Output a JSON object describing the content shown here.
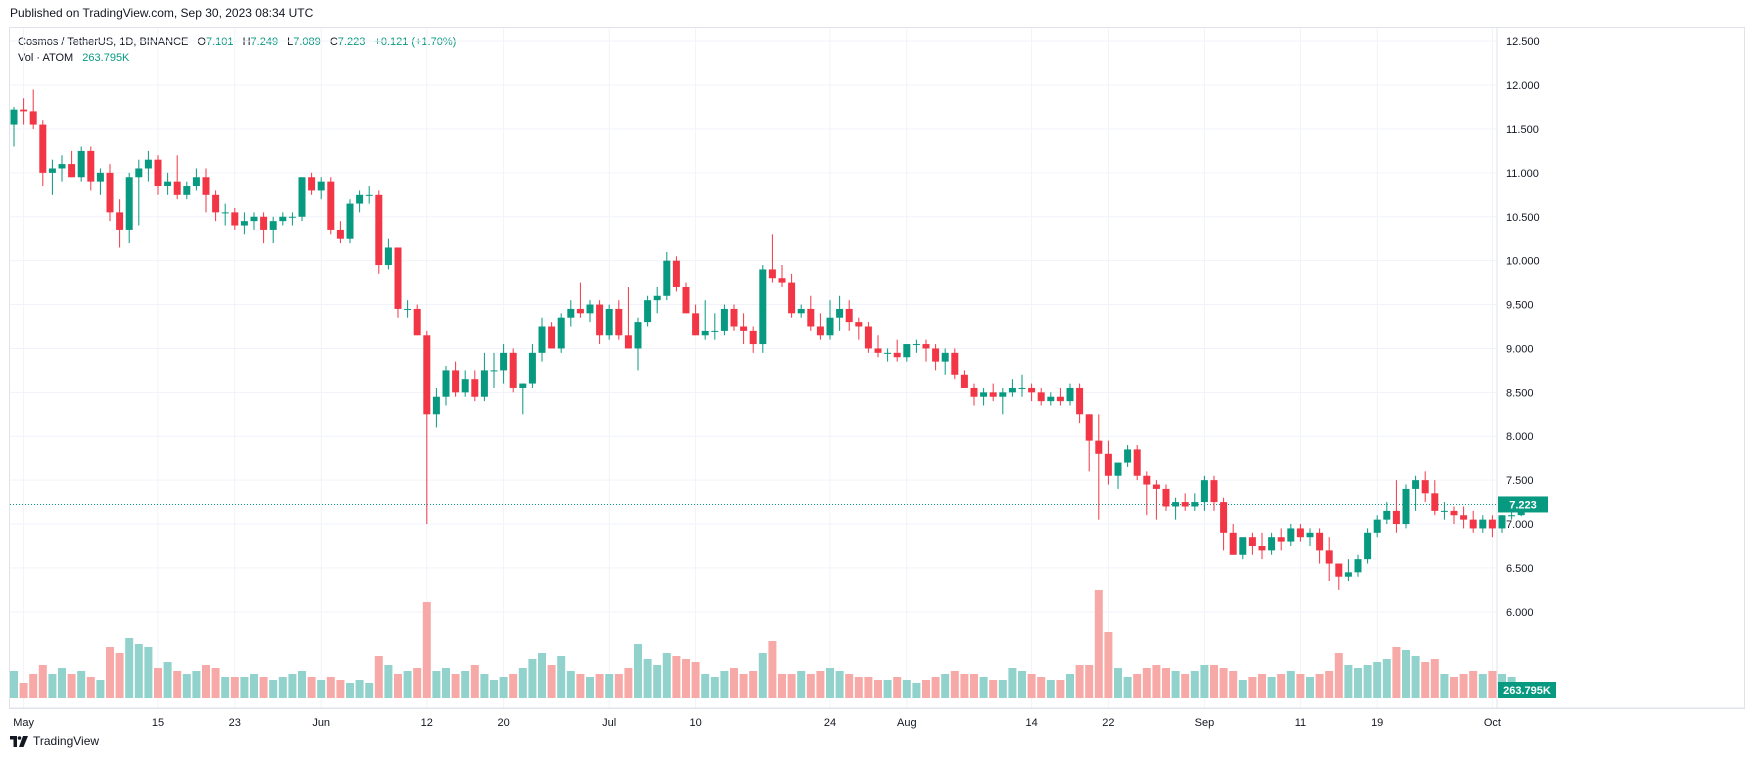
{
  "header": {
    "published": "Published on TradingView.com, Sep 30, 2023 08:34 UTC"
  },
  "legend": {
    "symbol": "Cosmos / TetherUS, 1D, BINANCE",
    "open_label": "O",
    "open": "7.101",
    "high_label": "H",
    "high": "7.249",
    "low_label": "L",
    "low": "7.089",
    "close_label": "C",
    "close": "7.223",
    "change": "+0.121 (+1.70%)",
    "vol_label": "Vol · ATOM",
    "vol": "263.795K"
  },
  "footer": {
    "brand": "TradingView"
  },
  "colors": {
    "up": "#089981",
    "down": "#f23645",
    "up_vol": "#92d2cc",
    "down_vol": "#f7a9a7",
    "grid": "#f0f3fa",
    "axis_text": "#131722"
  },
  "chart_data": {
    "type": "candlestick",
    "y_ticks": [
      "12.500",
      "12.000",
      "11.500",
      "11.000",
      "10.500",
      "10.000",
      "9.500",
      "9.000",
      "8.500",
      "8.000",
      "7.500",
      "7.000",
      "6.500",
      "6.000"
    ],
    "ylim": [
      5.85,
      12.65
    ],
    "x_labels": [
      {
        "label": "May",
        "date": "2023-05-01"
      },
      {
        "label": "15",
        "date": "2023-05-15"
      },
      {
        "label": "23",
        "date": "2023-05-23"
      },
      {
        "label": "Jun",
        "date": "2023-06-01"
      },
      {
        "label": "12",
        "date": "2023-06-12"
      },
      {
        "label": "20",
        "date": "2023-06-20"
      },
      {
        "label": "Jul",
        "date": "2023-07-01"
      },
      {
        "label": "10",
        "date": "2023-07-10"
      },
      {
        "label": "24",
        "date": "2023-07-24"
      },
      {
        "label": "Aug",
        "date": "2023-08-01"
      },
      {
        "label": "14",
        "date": "2023-08-14"
      },
      {
        "label": "22",
        "date": "2023-08-22"
      },
      {
        "label": "Sep",
        "date": "2023-09-01"
      },
      {
        "label": "11",
        "date": "2023-09-11"
      },
      {
        "label": "19",
        "date": "2023-09-19"
      },
      {
        "label": "Oct",
        "date": "2023-10-01"
      }
    ],
    "last_price_label": "7.223",
    "last_volume_label": "263.795K",
    "start_date": "2023-04-30",
    "candles": [
      [
        11.55,
        11.75,
        11.3,
        11.72,
        0.45
      ],
      [
        11.72,
        11.85,
        11.55,
        11.7,
        0.25
      ],
      [
        11.7,
        11.95,
        11.5,
        11.55,
        0.4
      ],
      [
        11.55,
        11.6,
        10.85,
        11.0,
        0.55
      ],
      [
        11.0,
        11.15,
        10.75,
        11.05,
        0.4
      ],
      [
        11.05,
        11.2,
        10.9,
        11.1,
        0.5
      ],
      [
        11.1,
        11.25,
        10.95,
        10.95,
        0.4
      ],
      [
        10.95,
        11.3,
        10.9,
        11.25,
        0.45
      ],
      [
        11.25,
        11.3,
        10.8,
        10.9,
        0.35
      ],
      [
        10.9,
        11.05,
        10.75,
        11.0,
        0.3
      ],
      [
        11.0,
        11.1,
        10.45,
        10.55,
        0.85
      ],
      [
        10.55,
        10.7,
        10.15,
        10.35,
        0.75
      ],
      [
        10.35,
        11.0,
        10.2,
        10.95,
        1.0
      ],
      [
        10.95,
        11.15,
        10.4,
        11.05,
        0.9
      ],
      [
        11.05,
        11.25,
        10.9,
        11.15,
        0.85
      ],
      [
        11.15,
        11.2,
        10.75,
        10.85,
        0.5
      ],
      [
        10.85,
        11.0,
        10.75,
        10.9,
        0.6
      ],
      [
        10.9,
        11.2,
        10.7,
        10.75,
        0.45
      ],
      [
        10.75,
        10.9,
        10.7,
        10.85,
        0.4
      ],
      [
        10.85,
        11.05,
        10.8,
        10.95,
        0.45
      ],
      [
        10.95,
        11.05,
        10.55,
        10.75,
        0.55
      ],
      [
        10.75,
        10.8,
        10.45,
        10.55,
        0.5
      ],
      [
        10.55,
        10.65,
        10.4,
        10.55,
        0.35
      ],
      [
        10.55,
        10.6,
        10.35,
        10.4,
        0.35
      ],
      [
        10.4,
        10.55,
        10.3,
        10.45,
        0.35
      ],
      [
        10.45,
        10.55,
        10.35,
        10.5,
        0.4
      ],
      [
        10.5,
        10.55,
        10.2,
        10.35,
        0.35
      ],
      [
        10.35,
        10.5,
        10.2,
        10.45,
        0.3
      ],
      [
        10.45,
        10.55,
        10.4,
        10.5,
        0.35
      ],
      [
        10.5,
        10.55,
        10.4,
        10.5,
        0.4
      ],
      [
        10.5,
        10.95,
        10.45,
        10.95,
        0.45
      ],
      [
        10.95,
        11.0,
        10.75,
        10.8,
        0.35
      ],
      [
        10.8,
        10.95,
        10.7,
        10.9,
        0.3
      ],
      [
        10.9,
        10.95,
        10.3,
        10.35,
        0.35
      ],
      [
        10.35,
        10.45,
        10.2,
        10.25,
        0.3
      ],
      [
        10.25,
        10.7,
        10.2,
        10.65,
        0.25
      ],
      [
        10.65,
        10.8,
        10.55,
        10.75,
        0.3
      ],
      [
        10.75,
        10.85,
        10.65,
        10.75,
        0.25
      ],
      [
        10.75,
        10.8,
        9.85,
        9.95,
        0.7
      ],
      [
        9.95,
        10.25,
        9.9,
        10.15,
        0.55
      ],
      [
        10.15,
        10.15,
        9.35,
        9.45,
        0.4
      ],
      [
        9.45,
        9.55,
        9.35,
        9.45,
        0.45
      ],
      [
        9.45,
        9.5,
        9.15,
        9.15,
        0.5
      ],
      [
        9.15,
        9.2,
        7.0,
        8.25,
        1.6
      ],
      [
        8.25,
        8.55,
        8.1,
        8.45,
        0.45
      ],
      [
        8.45,
        8.8,
        8.35,
        8.75,
        0.5
      ],
      [
        8.75,
        8.85,
        8.45,
        8.5,
        0.4
      ],
      [
        8.5,
        8.75,
        8.45,
        8.65,
        0.45
      ],
      [
        8.65,
        8.75,
        8.4,
        8.45,
        0.55
      ],
      [
        8.45,
        8.95,
        8.4,
        8.75,
        0.4
      ],
      [
        8.75,
        8.95,
        8.55,
        8.75,
        0.3
      ],
      [
        8.75,
        9.05,
        8.6,
        8.95,
        0.35
      ],
      [
        8.95,
        9.0,
        8.5,
        8.55,
        0.4
      ],
      [
        8.55,
        8.6,
        8.25,
        8.6,
        0.5
      ],
      [
        8.6,
        9.05,
        8.55,
        8.95,
        0.65
      ],
      [
        8.95,
        9.35,
        8.85,
        9.25,
        0.75
      ],
      [
        9.25,
        9.3,
        9.0,
        9.0,
        0.55
      ],
      [
        9.0,
        9.4,
        8.95,
        9.35,
        0.7
      ],
      [
        9.35,
        9.55,
        9.25,
        9.45,
        0.45
      ],
      [
        9.45,
        9.75,
        9.35,
        9.4,
        0.4
      ],
      [
        9.4,
        9.55,
        9.3,
        9.5,
        0.35
      ],
      [
        9.5,
        9.55,
        9.05,
        9.15,
        0.4
      ],
      [
        9.15,
        9.5,
        9.1,
        9.45,
        0.4
      ],
      [
        9.45,
        9.55,
        9.1,
        9.15,
        0.4
      ],
      [
        9.15,
        9.7,
        9.0,
        9.0,
        0.5
      ],
      [
        9.0,
        9.35,
        8.75,
        9.3,
        0.9
      ],
      [
        9.3,
        9.6,
        9.25,
        9.55,
        0.65
      ],
      [
        9.55,
        9.7,
        9.4,
        9.6,
        0.55
      ],
      [
        9.6,
        10.1,
        9.55,
        10.0,
        0.75
      ],
      [
        10.0,
        10.05,
        9.65,
        9.7,
        0.7
      ],
      [
        9.7,
        9.75,
        9.4,
        9.4,
        0.65
      ],
      [
        9.4,
        9.5,
        9.15,
        9.15,
        0.6
      ],
      [
        9.15,
        9.55,
        9.1,
        9.2,
        0.4
      ],
      [
        9.2,
        9.4,
        9.1,
        9.2,
        0.35
      ],
      [
        9.2,
        9.5,
        9.15,
        9.45,
        0.45
      ],
      [
        9.45,
        9.5,
        9.2,
        9.25,
        0.5
      ],
      [
        9.25,
        9.4,
        9.05,
        9.2,
        0.4
      ],
      [
        9.2,
        9.25,
        8.95,
        9.05,
        0.45
      ],
      [
        9.05,
        9.95,
        8.95,
        9.9,
        0.75
      ],
      [
        9.9,
        10.3,
        9.75,
        9.8,
        0.95
      ],
      [
        9.8,
        9.95,
        9.7,
        9.75,
        0.4
      ],
      [
        9.75,
        9.85,
        9.35,
        9.4,
        0.4
      ],
      [
        9.4,
        9.5,
        9.35,
        9.45,
        0.45
      ],
      [
        9.45,
        9.6,
        9.2,
        9.25,
        0.4
      ],
      [
        9.25,
        9.4,
        9.1,
        9.15,
        0.45
      ],
      [
        9.15,
        9.55,
        9.1,
        9.35,
        0.5
      ],
      [
        9.35,
        9.6,
        9.2,
        9.45,
        0.45
      ],
      [
        9.45,
        9.55,
        9.2,
        9.3,
        0.4
      ],
      [
        9.3,
        9.35,
        9.1,
        9.25,
        0.35
      ],
      [
        9.25,
        9.3,
        8.95,
        9.0,
        0.35
      ],
      [
        9.0,
        9.15,
        8.9,
        8.95,
        0.3
      ],
      [
        8.95,
        9.0,
        8.85,
        8.95,
        0.3
      ],
      [
        8.95,
        9.1,
        8.85,
        8.9,
        0.35
      ],
      [
        8.9,
        9.05,
        8.85,
        9.05,
        0.3
      ],
      [
        9.05,
        9.1,
        8.95,
        9.05,
        0.25
      ],
      [
        9.05,
        9.1,
        8.85,
        9.0,
        0.3
      ],
      [
        9.0,
        9.05,
        8.75,
        8.85,
        0.35
      ],
      [
        8.85,
        9.0,
        8.7,
        8.95,
        0.4
      ],
      [
        8.95,
        9.0,
        8.65,
        8.7,
        0.45
      ],
      [
        8.7,
        8.75,
        8.55,
        8.55,
        0.4
      ],
      [
        8.55,
        8.6,
        8.35,
        8.45,
        0.4
      ],
      [
        8.45,
        8.55,
        8.35,
        8.5,
        0.35
      ],
      [
        8.5,
        8.6,
        8.4,
        8.45,
        0.3
      ],
      [
        8.45,
        8.55,
        8.25,
        8.5,
        0.3
      ],
      [
        8.5,
        8.65,
        8.45,
        8.55,
        0.5
      ],
      [
        8.55,
        8.7,
        8.45,
        8.55,
        0.45
      ],
      [
        8.55,
        8.6,
        8.4,
        8.5,
        0.4
      ],
      [
        8.5,
        8.55,
        8.35,
        8.4,
        0.35
      ],
      [
        8.4,
        8.5,
        8.35,
        8.45,
        0.3
      ],
      [
        8.45,
        8.55,
        8.35,
        8.4,
        0.3
      ],
      [
        8.4,
        8.6,
        8.35,
        8.55,
        0.4
      ],
      [
        8.55,
        8.6,
        8.15,
        8.25,
        0.55
      ],
      [
        8.25,
        8.25,
        7.6,
        7.95,
        0.55
      ],
      [
        7.95,
        8.25,
        7.05,
        7.8,
        1.8
      ],
      [
        7.8,
        7.95,
        7.45,
        7.55,
        1.1
      ],
      [
        7.55,
        7.7,
        7.4,
        7.7,
        0.5
      ],
      [
        7.7,
        7.9,
        7.65,
        7.85,
        0.35
      ],
      [
        7.85,
        7.9,
        7.5,
        7.55,
        0.4
      ],
      [
        7.55,
        7.6,
        7.1,
        7.45,
        0.5
      ],
      [
        7.45,
        7.5,
        7.05,
        7.4,
        0.55
      ],
      [
        7.4,
        7.45,
        7.15,
        7.2,
        0.5
      ],
      [
        7.2,
        7.3,
        7.05,
        7.25,
        0.45
      ],
      [
        7.25,
        7.35,
        7.15,
        7.2,
        0.4
      ],
      [
        7.2,
        7.35,
        7.15,
        7.25,
        0.45
      ],
      [
        7.25,
        7.55,
        7.15,
        7.5,
        0.55
      ],
      [
        7.5,
        7.55,
        7.15,
        7.25,
        0.55
      ],
      [
        7.25,
        7.3,
        6.7,
        6.9,
        0.5
      ],
      [
        6.9,
        7.0,
        6.65,
        6.65,
        0.45
      ],
      [
        6.65,
        6.85,
        6.6,
        6.85,
        0.3
      ],
      [
        6.85,
        6.9,
        6.65,
        6.75,
        0.35
      ],
      [
        6.75,
        6.9,
        6.6,
        6.7,
        0.4
      ],
      [
        6.7,
        6.9,
        6.65,
        6.85,
        0.35
      ],
      [
        6.85,
        6.95,
        6.7,
        6.8,
        0.4
      ],
      [
        6.8,
        7.0,
        6.75,
        6.95,
        0.45
      ],
      [
        6.95,
        7.0,
        6.8,
        6.85,
        0.4
      ],
      [
        6.85,
        6.95,
        6.75,
        6.9,
        0.35
      ],
      [
        6.9,
        6.95,
        6.55,
        6.7,
        0.4
      ],
      [
        6.7,
        6.85,
        6.35,
        6.55,
        0.45
      ],
      [
        6.55,
        6.55,
        6.25,
        6.4,
        0.75
      ],
      [
        6.4,
        6.6,
        6.35,
        6.45,
        0.55
      ],
      [
        6.45,
        6.65,
        6.4,
        6.6,
        0.5
      ],
      [
        6.6,
        6.95,
        6.55,
        6.9,
        0.55
      ],
      [
        6.9,
        7.1,
        6.85,
        7.05,
        0.6
      ],
      [
        7.05,
        7.25,
        7.0,
        7.15,
        0.65
      ],
      [
        7.15,
        7.5,
        6.9,
        7.0,
        0.85
      ],
      [
        7.0,
        7.45,
        6.95,
        7.4,
        0.8
      ],
      [
        7.4,
        7.55,
        7.15,
        7.5,
        0.7
      ],
      [
        7.5,
        7.6,
        7.25,
        7.35,
        0.6
      ],
      [
        7.35,
        7.5,
        7.1,
        7.15,
        0.65
      ],
      [
        7.15,
        7.25,
        7.05,
        7.15,
        0.4
      ],
      [
        7.15,
        7.2,
        7.0,
        7.1,
        0.35
      ],
      [
        7.1,
        7.2,
        6.95,
        7.05,
        0.4
      ],
      [
        7.05,
        7.15,
        6.9,
        6.95,
        0.45
      ],
      [
        6.95,
        7.1,
        6.9,
        7.05,
        0.4
      ],
      [
        7.05,
        7.1,
        6.85,
        6.95,
        0.45
      ],
      [
        6.95,
        7.1,
        6.9,
        7.1,
        0.4
      ],
      [
        7.1,
        7.15,
        7.05,
        7.1,
        0.35
      ],
      [
        7.101,
        7.249,
        7.089,
        7.223,
        0.26
      ]
    ]
  }
}
